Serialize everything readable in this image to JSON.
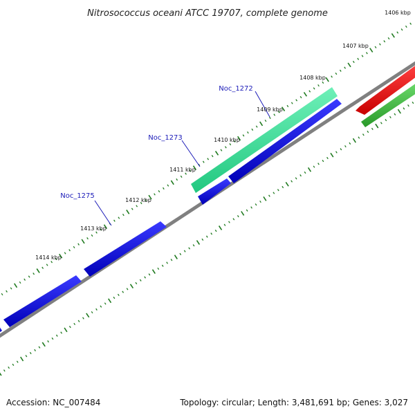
{
  "title": "Nitrosococcus oceani ATCC 19707, complete genome",
  "accession_text": "Accession: NC_007484",
  "summary_text": "Topology: circular; Length: 3,481,691 bp; Genes: 3,027",
  "colors": {
    "backbone": "#808080",
    "tick": "#1f7a1f",
    "fwd_highlight": "#3cdf96",
    "fwd": "#1010e0",
    "rev_red": "#ee1111",
    "rev_green": "#3cb83c",
    "gene_label": "#1a1ab8"
  },
  "kbp_labels": [
    "1406 kbp",
    "1407 kbp",
    "1408 kbp",
    "1409 kbp",
    "1410 kbp",
    "1411 kbp",
    "1412 kbp",
    "1413 kbp",
    "1414 kbp"
  ],
  "gene_labels": [
    "Noc_1272",
    "Noc_1273",
    "Noc_1275"
  ]
}
